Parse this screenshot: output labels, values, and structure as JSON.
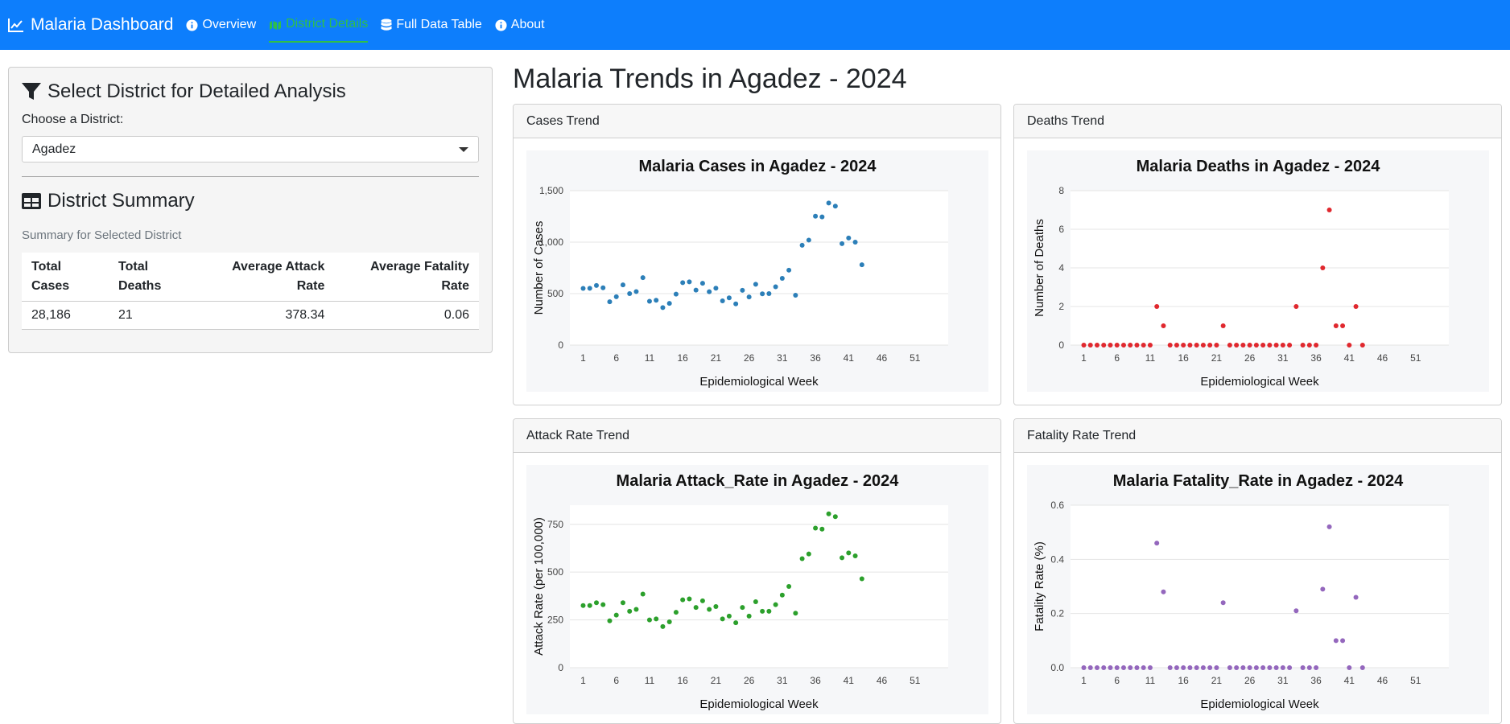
{
  "navbar": {
    "brand": "Malaria Dashboard",
    "items": [
      {
        "label": "Overview",
        "icon": "info-icon"
      },
      {
        "label": "District Details",
        "icon": "map-icon",
        "active": true
      },
      {
        "label": "Full Data Table",
        "icon": "database-icon"
      },
      {
        "label": "About",
        "icon": "info-icon"
      }
    ],
    "color": "#0d7efc",
    "active_color": "#2fbf4a"
  },
  "sidebar": {
    "heading": "Select District for Detailed Analysis",
    "select_label": "Choose a District:",
    "selected_district": "Agadez",
    "summary_heading": "District Summary",
    "summary_sub": "Summary for Selected District",
    "table": {
      "headers": [
        "Total Cases",
        "Total Deaths",
        "Average Attack Rate",
        "Average Fatality Rate"
      ],
      "row": [
        "28,186",
        "21",
        "378.34",
        "0.06"
      ]
    }
  },
  "main": {
    "title": "Malaria Trends in Agadez - 2024",
    "cards": [
      {
        "header": "Cases Trend"
      },
      {
        "header": "Deaths Trend"
      },
      {
        "header": "Attack Rate Trend"
      },
      {
        "header": "Fatality Rate Trend"
      }
    ]
  },
  "chart_data": [
    {
      "type": "scatter",
      "title": "Malaria Cases in Agadez - 2024",
      "xlabel": "Epidemiological Week",
      "ylabel": "Number of Cases",
      "color": "#2c7fb8",
      "xlim": [
        -1,
        56
      ],
      "ylim": [
        0,
        1500
      ],
      "xticks": [
        1,
        6,
        11,
        16,
        21,
        26,
        31,
        36,
        41,
        46,
        51
      ],
      "yticks": [
        0,
        500,
        1000,
        1500
      ],
      "ytick_labels": [
        "0",
        "500",
        "1,000",
        "1,500"
      ],
      "x": [
        1,
        2,
        3,
        4,
        5,
        6,
        7,
        8,
        9,
        10,
        11,
        12,
        13,
        14,
        15,
        16,
        17,
        18,
        19,
        20,
        21,
        22,
        23,
        24,
        25,
        26,
        27,
        28,
        29,
        30,
        31,
        32,
        33,
        34,
        35,
        36,
        37,
        38,
        39,
        40,
        41,
        42,
        43
      ],
      "y": [
        551,
        552,
        579,
        557,
        421,
        470,
        585,
        500,
        520,
        655,
        426,
        436,
        364,
        405,
        495,
        606,
        614,
        534,
        601,
        519,
        553,
        430,
        459,
        400,
        532,
        468,
        591,
        498,
        500,
        566,
        648,
        728,
        484,
        970,
        1020,
        1252,
        1245,
        1380,
        1350,
        985,
        1040,
        1000,
        780
      ]
    },
    {
      "type": "scatter",
      "title": "Malaria Deaths in Agadez - 2024",
      "xlabel": "Epidemiological Week",
      "ylabel": "Number of Deaths",
      "color": "#e0282e",
      "xlim": [
        -1,
        56
      ],
      "ylim": [
        0,
        8
      ],
      "xticks": [
        1,
        6,
        11,
        16,
        21,
        26,
        31,
        36,
        41,
        46,
        51
      ],
      "yticks": [
        0,
        2,
        4,
        6,
        8
      ],
      "ytick_labels": [
        "0",
        "2",
        "4",
        "6",
        "8"
      ],
      "x": [
        1,
        2,
        3,
        4,
        5,
        6,
        7,
        8,
        9,
        10,
        11,
        12,
        13,
        14,
        15,
        16,
        17,
        18,
        19,
        20,
        21,
        22,
        23,
        24,
        25,
        26,
        27,
        28,
        29,
        30,
        31,
        32,
        33,
        34,
        35,
        36,
        37,
        38,
        39,
        40,
        41,
        42,
        43
      ],
      "y": [
        0,
        0,
        0,
        0,
        0,
        0,
        0,
        0,
        0,
        0,
        0,
        2,
        1,
        0,
        0,
        0,
        0,
        0,
        0,
        0,
        0,
        1,
        0,
        0,
        0,
        0,
        0,
        0,
        0,
        0,
        0,
        0,
        2,
        0,
        0,
        0,
        4,
        7,
        1,
        1,
        0,
        2,
        0
      ]
    },
    {
      "type": "scatter",
      "title": "Malaria Attack_Rate in Agadez - 2024",
      "xlabel": "Epidemiological Week",
      "ylabel": "Attack Rate (per 100,000)",
      "color": "#2ca02c",
      "xlim": [
        -1,
        56
      ],
      "ylim": [
        0,
        850
      ],
      "xticks": [
        1,
        6,
        11,
        16,
        21,
        26,
        31,
        36,
        41,
        46,
        51
      ],
      "yticks": [
        0,
        250,
        500,
        750
      ],
      "ytick_labels": [
        "0",
        "250",
        "500",
        "750"
      ],
      "x": [
        1,
        2,
        3,
        4,
        5,
        6,
        7,
        8,
        9,
        10,
        11,
        12,
        13,
        14,
        15,
        16,
        17,
        18,
        19,
        20,
        21,
        22,
        23,
        24,
        25,
        26,
        27,
        28,
        29,
        30,
        31,
        32,
        33,
        34,
        35,
        36,
        37,
        38,
        39,
        40,
        41,
        42,
        43
      ],
      "y": [
        325,
        325,
        340,
        330,
        245,
        275,
        340,
        295,
        305,
        385,
        250,
        255,
        215,
        240,
        290,
        355,
        360,
        315,
        350,
        305,
        320,
        255,
        270,
        235,
        315,
        270,
        345,
        295,
        295,
        330,
        380,
        425,
        285,
        570,
        595,
        730,
        725,
        805,
        790,
        575,
        600,
        585,
        465
      ]
    },
    {
      "type": "scatter",
      "title": "Malaria Fatality_Rate in Agadez - 2024",
      "xlabel": "Epidemiological Week",
      "ylabel": "Fatality Rate (%)",
      "color": "#9467bd",
      "xlim": [
        -1,
        56
      ],
      "ylim": [
        0,
        0.6
      ],
      "xticks": [
        1,
        6,
        11,
        16,
        21,
        26,
        31,
        36,
        41,
        46,
        51
      ],
      "yticks": [
        0,
        0.2,
        0.4,
        0.6
      ],
      "ytick_labels": [
        "0.0",
        "0.2",
        "0.4",
        "0.6"
      ],
      "x": [
        1,
        2,
        3,
        4,
        5,
        6,
        7,
        8,
        9,
        10,
        11,
        12,
        13,
        14,
        15,
        16,
        17,
        18,
        19,
        20,
        21,
        22,
        23,
        24,
        25,
        26,
        27,
        28,
        29,
        30,
        31,
        32,
        33,
        34,
        35,
        36,
        37,
        38,
        39,
        40,
        41,
        42,
        43
      ],
      "y": [
        0,
        0,
        0,
        0,
        0,
        0,
        0,
        0,
        0,
        0,
        0,
        0.46,
        0.28,
        0,
        0,
        0,
        0,
        0,
        0,
        0,
        0,
        0.24,
        0,
        0,
        0,
        0,
        0,
        0,
        0,
        0,
        0,
        0,
        0.21,
        0,
        0,
        0,
        0.29,
        0.52,
        0.1,
        0.1,
        0,
        0.26,
        0
      ]
    }
  ]
}
